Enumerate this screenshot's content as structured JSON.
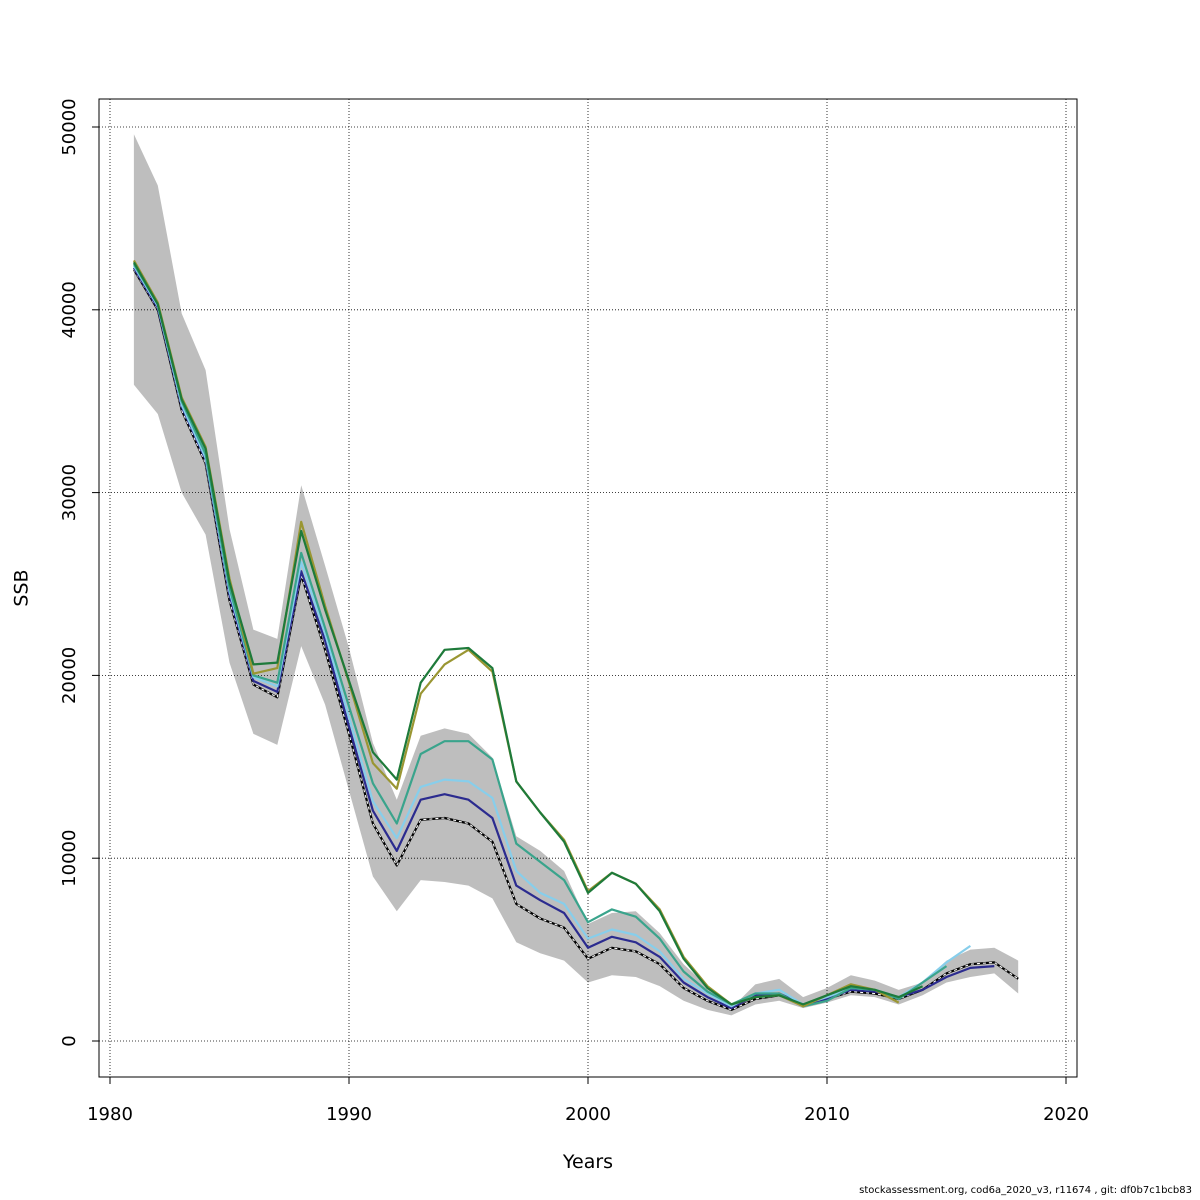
{
  "chart_data": {
    "type": "line",
    "title": "",
    "xlabel": "Years",
    "ylabel": "SSB",
    "xlim": [
      1980,
      2020
    ],
    "ylim": [
      0,
      50000
    ],
    "x_ticks": [
      1980,
      1990,
      2000,
      2010,
      2020
    ],
    "y_ticks": [
      0,
      10000,
      20000,
      30000,
      40000,
      50000
    ],
    "grid": true,
    "confidence_band": {
      "x": [
        1981,
        1982,
        1983,
        1984,
        1985,
        1986,
        1987,
        1988,
        1989,
        1990,
        1991,
        1992,
        1993,
        1994,
        1995,
        1996,
        1997,
        1998,
        1999,
        2000,
        2001,
        2002,
        2003,
        2004,
        2005,
        2006,
        2007,
        2008,
        2009,
        2010,
        2011,
        2012,
        2013,
        2014,
        2015,
        2016,
        2017,
        2018
      ],
      "upper": [
        49600,
        46800,
        39800,
        36700,
        28000,
        22500,
        22000,
        30400,
        26000,
        21500,
        16300,
        13200,
        16700,
        17100,
        16800,
        15500,
        11200,
        10400,
        9300,
        6400,
        7000,
        7100,
        5900,
        4200,
        3000,
        1800,
        3100,
        3400,
        2400,
        2900,
        3600,
        3300,
        2800,
        3200,
        4400,
        5000,
        5100,
        4400
      ],
      "lower": [
        35900,
        34300,
        30000,
        27700,
        20700,
        16800,
        16200,
        21600,
        18400,
        13700,
        9000,
        7100,
        8800,
        8700,
        8500,
        7800,
        5400,
        4800,
        4400,
        3200,
        3600,
        3500,
        3000,
        2200,
        1700,
        1400,
        2000,
        2200,
        1800,
        2100,
        2500,
        2400,
        2000,
        2500,
        3200,
        3500,
        3700,
        2600
      ]
    },
    "series": [
      {
        "color": "#000000",
        "dashed": true,
        "x": [
          1981,
          1982,
          1983,
          1984,
          1985,
          1986,
          1987,
          1988,
          1989,
          1990,
          1991,
          1992,
          1993,
          1994,
          1995,
          1996,
          1997,
          1998,
          1999,
          2000,
          2001,
          2002,
          2003,
          2004,
          2005,
          2006,
          2007,
          2008,
          2009,
          2010,
          2011,
          2012,
          2013,
          2014,
          2015,
          2016,
          2017,
          2018
        ],
        "values": [
          42200,
          40000,
          34500,
          31600,
          24100,
          19500,
          18800,
          25500,
          21400,
          16800,
          11900,
          9600,
          12100,
          12200,
          11900,
          10900,
          7500,
          6700,
          6200,
          4500,
          5100,
          4900,
          4200,
          2900,
          2200,
          1700,
          2300,
          2500,
          2000,
          2300,
          2700,
          2600,
          2300,
          2800,
          3700,
          4200,
          4300,
          3400
        ]
      },
      {
        "color": "#2b2b8f",
        "dashed": false,
        "x": [
          1981,
          1982,
          1983,
          1984,
          1985,
          1986,
          1987,
          1988,
          1989,
          1990,
          1991,
          1992,
          1993,
          1994,
          1995,
          1996,
          1997,
          1998,
          1999,
          2000,
          2001,
          2002,
          2003,
          2004,
          2005,
          2006,
          2007,
          2008,
          2009,
          2010,
          2011,
          2012,
          2013,
          2014,
          2015,
          2016,
          2017
        ],
        "values": [
          42300,
          40100,
          34700,
          31800,
          24400,
          19700,
          19100,
          25700,
          21900,
          17200,
          12600,
          10400,
          13200,
          13500,
          13200,
          12200,
          8500,
          7700,
          7000,
          5100,
          5700,
          5400,
          4600,
          3200,
          2400,
          1800,
          2500,
          2600,
          2000,
          2300,
          2800,
          2700,
          2400,
          2800,
          3500,
          4000,
          4100
        ]
      },
      {
        "color": "#87ceeb",
        "dashed": false,
        "x": [
          1981,
          1982,
          1983,
          1984,
          1985,
          1986,
          1987,
          1988,
          1989,
          1990,
          1991,
          1992,
          1993,
          1994,
          1995,
          1996,
          1997,
          1998,
          1999,
          2000,
          2001,
          2002,
          2003,
          2004,
          2005,
          2006,
          2007,
          2008,
          2009,
          2010,
          2011,
          2012,
          2013,
          2014,
          2015,
          2016
        ],
        "values": [
          42400,
          40200,
          34800,
          31900,
          24600,
          19900,
          19400,
          26200,
          22300,
          17700,
          13100,
          11100,
          13900,
          14300,
          14200,
          13300,
          9300,
          8100,
          7500,
          5600,
          6100,
          5800,
          4900,
          3400,
          2600,
          1900,
          2600,
          2800,
          2000,
          2400,
          2900,
          2800,
          2400,
          3200,
          4300,
          5200
        ]
      },
      {
        "color": "#3aa48c",
        "dashed": false,
        "x": [
          1981,
          1982,
          1983,
          1984,
          1985,
          1986,
          1987,
          1988,
          1989,
          1990,
          1991,
          1992,
          1993,
          1994,
          1995,
          1996,
          1997,
          1998,
          1999,
          2000,
          2001,
          2002,
          2003,
          2004,
          2005,
          2006,
          2007,
          2008,
          2009,
          2010,
          2011,
          2012,
          2013,
          2014,
          2015
        ],
        "values": [
          42500,
          40300,
          35000,
          32100,
          24800,
          20000,
          19600,
          26700,
          22600,
          18300,
          14100,
          11900,
          15700,
          16400,
          16400,
          15400,
          10800,
          9800,
          8800,
          6500,
          7200,
          6800,
          5600,
          3800,
          2700,
          2000,
          2600,
          2600,
          1900,
          2200,
          2900,
          2800,
          2300,
          3200,
          4100
        ]
      },
      {
        "color": "#9a9632",
        "dashed": false,
        "x": [
          1981,
          1982,
          1983,
          1984,
          1985,
          1986,
          1987,
          1988,
          1989,
          1990,
          1991,
          1992,
          1993,
          1994,
          1995,
          1996,
          1997,
          1998,
          1999,
          2000,
          2001,
          2002,
          2003,
          2004,
          2005,
          2006,
          2007,
          2008,
          2009,
          2010,
          2011,
          2012,
          2013
        ],
        "values": [
          42700,
          40400,
          35200,
          32500,
          25300,
          20100,
          20400,
          28400,
          23800,
          19600,
          15200,
          13800,
          19000,
          20600,
          21400,
          20200,
          14200,
          12500,
          11000,
          8200,
          9200,
          8600,
          7200,
          4600,
          3000,
          2000,
          2400,
          2500,
          1900,
          2500,
          3100,
          2800,
          2100
        ]
      },
      {
        "color": "#1e7a3a",
        "dashed": false,
        "x": [
          1981,
          1982,
          1983,
          1984,
          1985,
          1986,
          1987,
          1988,
          1989,
          1990,
          1991,
          1992,
          1993,
          1994,
          1995,
          1996,
          1997,
          1998,
          1999,
          2000,
          2001,
          2002,
          2003,
          2004,
          2005,
          2006,
          2007,
          2008,
          2009,
          2010,
          2011,
          2012,
          2013,
          2014
        ],
        "values": [
          42600,
          40300,
          35100,
          32400,
          25100,
          20600,
          20700,
          27900,
          23600,
          19700,
          15800,
          14300,
          19600,
          21400,
          21500,
          20400,
          14200,
          12500,
          10900,
          8100,
          9200,
          8600,
          7100,
          4500,
          2900,
          2000,
          2400,
          2500,
          2000,
          2500,
          3000,
          2800,
          2400,
          3000
        ]
      }
    ]
  },
  "footer": "stockassessment.org, cod6a_2020_v3, r11674 , git: df0b7c1bcb83"
}
